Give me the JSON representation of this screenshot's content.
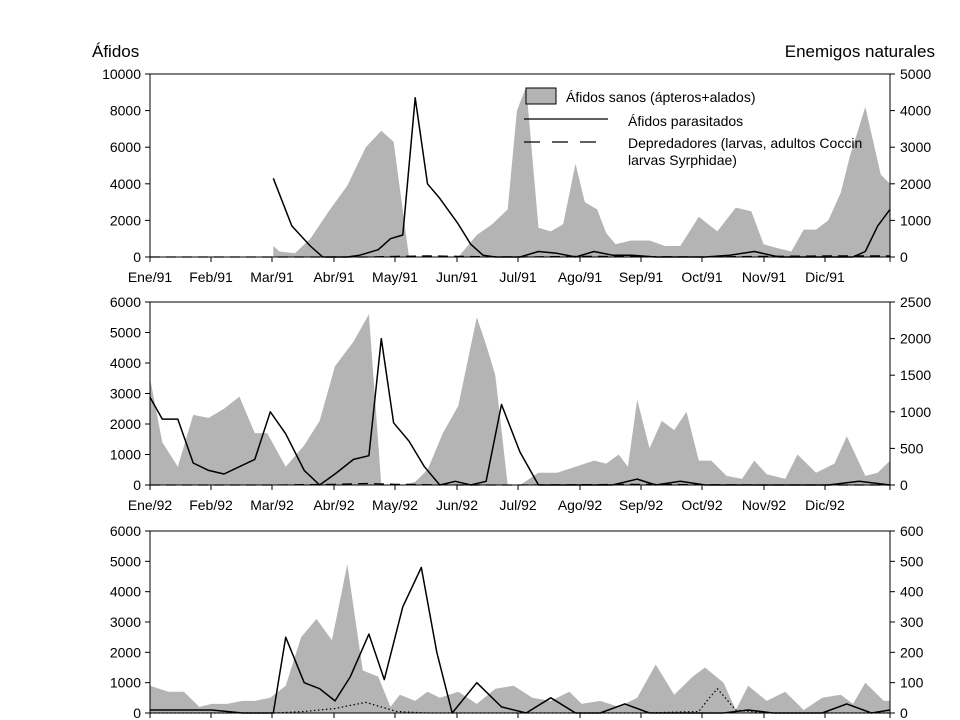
{
  "figure": {
    "left_axis_title": "Áfidos",
    "right_axis_title": "Enemigos naturales"
  },
  "legend": {
    "items": [
      {
        "label": "Áfidos sanos (ápteros+alados)",
        "style": "area",
        "color": "#b4b4b4"
      },
      {
        "label": "Áfidos parasitados",
        "style": "solid",
        "color": "#000000"
      },
      {
        "label": "Depredadores (larvas, adultos Coccin",
        "label_line2": "larvas Syrphidae)",
        "style": "dashed",
        "color": "#000000"
      }
    ]
  },
  "colors": {
    "area": "#b4b4b4",
    "line": "#000000"
  },
  "chart_data": [
    {
      "type": "area",
      "panel": "1991",
      "x_ticks": [
        "Ene/91",
        "Feb/91",
        "Mar/91",
        "Abr/91",
        "May/91",
        "Jun/91",
        "Jul/91",
        "Ago/91",
        "Sep/91",
        "Oct/91",
        "Nov/91",
        "Dic/91"
      ],
      "y_left": {
        "min": 0,
        "max": 10000,
        "ticks": [
          0,
          2000,
          4000,
          6000,
          8000,
          10000
        ]
      },
      "y_right": {
        "min": 0,
        "max": 5000,
        "ticks": [
          0,
          1000,
          2000,
          3000,
          4000,
          5000
        ]
      },
      "series": [
        {
          "name": "Áfidos sanos (ápteros+alados)",
          "axis": "left",
          "style": "area",
          "x": [
            2.0,
            2.1,
            2.35,
            2.6,
            2.9,
            3.2,
            3.5,
            3.75,
            3.95,
            4.2,
            4.45,
            4.65,
            4.8,
            5.0,
            5.3,
            5.55,
            5.8,
            5.95,
            6.1,
            6.3,
            6.5,
            6.7,
            6.9,
            7.05,
            7.25,
            7.4,
            7.55,
            7.8,
            8.1,
            8.35,
            8.6,
            8.9,
            9.2,
            9.5,
            9.75,
            9.95,
            10.15,
            10.4,
            10.6,
            10.8,
            11.0,
            11.2,
            11.35,
            11.6,
            11.85,
            12.0
          ],
          "y": [
            600,
            300,
            200,
            1000,
            2500,
            3900,
            6000,
            6900,
            6300,
            0,
            0,
            0,
            0,
            0,
            1200,
            1800,
            2600,
            8000,
            9300,
            1600,
            1400,
            1800,
            5100,
            3000,
            2600,
            1300,
            700,
            900,
            900,
            600,
            600,
            2200,
            1400,
            2700,
            2500,
            700,
            500,
            300,
            1500,
            1500,
            2000,
            3500,
            5500,
            8200,
            4500,
            4000
          ]
        },
        {
          "name": "Áfidos parasitados",
          "axis": "right",
          "style": "solid",
          "x": [
            2.0,
            2.3,
            2.6,
            2.8,
            3.0,
            3.2,
            3.4,
            3.7,
            3.9,
            4.1,
            4.3,
            4.5,
            4.7,
            5.0,
            5.2,
            5.4,
            5.6,
            5.8,
            6.0,
            6.3,
            6.6,
            6.9,
            7.2,
            7.5,
            7.8,
            8.2,
            8.6,
            9.0,
            9.4,
            9.8,
            10.2,
            10.6,
            11.0,
            11.4,
            11.6,
            11.8,
            12.0
          ],
          "y": [
            2150,
            850,
            300,
            0,
            0,
            0,
            50,
            200,
            500,
            600,
            4350,
            2000,
            1600,
            900,
            350,
            50,
            0,
            0,
            0,
            150,
            100,
            0,
            150,
            50,
            50,
            0,
            0,
            0,
            50,
            150,
            0,
            0,
            0,
            0,
            150,
            850,
            1300
          ]
        },
        {
          "name": "Depredadores (larvas, adultos Coccin larvas Syrphidae)",
          "axis": "right",
          "style": "dashed",
          "x": [
            0,
            3.5,
            4.0,
            4.5,
            5.0,
            6.0,
            7.0,
            8.0,
            9.0,
            10.0,
            11.0,
            12.0
          ],
          "y": [
            0,
            0,
            20,
            30,
            20,
            0,
            20,
            10,
            0,
            20,
            30,
            30
          ]
        }
      ]
    },
    {
      "type": "area",
      "panel": "1992a",
      "x_ticks": [
        "Ene/92",
        "Feb/92",
        "Mar/92",
        "Abr/92",
        "May/92",
        "Jun/92",
        "Jul/92",
        "Ago/92",
        "Sep/92",
        "Oct/92",
        "Nov/92",
        "Dic/92"
      ],
      "y_left": {
        "min": 0,
        "max": 6000,
        "ticks": [
          0,
          1000,
          2000,
          3000,
          4000,
          5000,
          6000
        ]
      },
      "y_right": {
        "min": 0,
        "max": 2500,
        "ticks": [
          0,
          500,
          1000,
          1500,
          2000,
          2500
        ]
      },
      "series": [
        {
          "name": "Áfidos sanos (ápteros+alados)",
          "axis": "left",
          "style": "area",
          "x": [
            0.0,
            0.2,
            0.45,
            0.7,
            0.95,
            1.2,
            1.45,
            1.7,
            1.9,
            2.2,
            2.5,
            2.75,
            3.0,
            3.3,
            3.55,
            3.75,
            3.9,
            4.1,
            4.3,
            4.5,
            4.75,
            5.0,
            5.3,
            5.45,
            5.6,
            5.8,
            6.0,
            6.3,
            6.6,
            6.9,
            7.2,
            7.4,
            7.6,
            7.75,
            7.9,
            8.1,
            8.3,
            8.5,
            8.7,
            8.9,
            9.1,
            9.35,
            9.6,
            9.8,
            10.0,
            10.3,
            10.5,
            10.8,
            11.1,
            11.3,
            11.6,
            11.8,
            12.0
          ],
          "y": [
            3500,
            1400,
            600,
            2300,
            2200,
            2500,
            2900,
            1700,
            1700,
            600,
            1300,
            2100,
            3900,
            4700,
            5600,
            0,
            0,
            0,
            100,
            500,
            1700,
            2600,
            5500,
            4600,
            3600,
            0,
            0,
            400,
            400,
            600,
            800,
            700,
            1000,
            600,
            2800,
            1200,
            2100,
            1800,
            2400,
            800,
            800,
            300,
            200,
            800,
            350,
            200,
            1000,
            400,
            700,
            1600,
            300,
            400,
            800
          ]
        },
        {
          "name": "Áfidos parasitados",
          "axis": "right",
          "style": "solid",
          "x": [
            0.0,
            0.2,
            0.45,
            0.7,
            0.95,
            1.2,
            1.45,
            1.7,
            1.95,
            2.2,
            2.5,
            2.75,
            3.0,
            3.3,
            3.55,
            3.75,
            3.95,
            4.2,
            4.45,
            4.7,
            4.95,
            5.2,
            5.45,
            5.7,
            6.0,
            6.3,
            6.6,
            7.0,
            7.5,
            7.9,
            8.2,
            8.6,
            9.0,
            9.5,
            10.0,
            10.5,
            11.0,
            11.5,
            12.0
          ],
          "y": [
            1200,
            900,
            900,
            300,
            200,
            150,
            250,
            350,
            1000,
            700,
            200,
            0,
            150,
            350,
            400,
            2000,
            850,
            600,
            250,
            0,
            50,
            0,
            50,
            1100,
            450,
            0,
            0,
            0,
            0,
            80,
            0,
            50,
            0,
            0,
            0,
            0,
            0,
            50,
            0
          ]
        },
        {
          "name": "Depredadores (larvas, adultos Coccin larvas Syrphidae)",
          "axis": "right",
          "style": "dashed",
          "x": [
            0,
            2.0,
            3.0,
            3.5,
            4.0,
            5.0,
            6.0,
            8.0,
            10.0,
            12.0
          ],
          "y": [
            0,
            0,
            10,
            20,
            10,
            0,
            0,
            10,
            0,
            0
          ]
        }
      ]
    },
    {
      "type": "area",
      "panel": "1992b",
      "x_ticks": [],
      "y_left": {
        "min": 0,
        "max": 6000,
        "ticks": [
          0,
          1000,
          2000,
          3000,
          4000,
          5000,
          6000
        ]
      },
      "y_right": {
        "min": 0,
        "max": 600,
        "ticks": [
          0,
          100,
          200,
          300,
          400,
          500,
          600
        ]
      },
      "series": [
        {
          "name": "Áfidos sanos (ápteros+alados)",
          "axis": "left",
          "style": "area",
          "x": [
            0.0,
            0.3,
            0.55,
            0.8,
            1.0,
            1.25,
            1.5,
            1.7,
            1.95,
            2.2,
            2.45,
            2.7,
            2.95,
            3.2,
            3.45,
            3.7,
            3.9,
            4.05,
            4.3,
            4.5,
            4.7,
            5.0,
            5.3,
            5.6,
            5.9,
            6.2,
            6.5,
            6.8,
            7.0,
            7.3,
            7.6,
            7.9,
            8.2,
            8.5,
            8.8,
            9.0,
            9.3,
            9.5,
            9.7,
            10.0,
            10.3,
            10.6,
            10.9,
            11.2,
            11.4,
            11.6,
            11.9,
            12.0
          ],
          "y": [
            900,
            700,
            700,
            200,
            300,
            300,
            400,
            400,
            500,
            900,
            2500,
            3100,
            2400,
            4900,
            1400,
            1200,
            200,
            600,
            400,
            700,
            500,
            700,
            300,
            800,
            900,
            500,
            400,
            700,
            300,
            400,
            200,
            500,
            1600,
            600,
            1200,
            1500,
            1000,
            100,
            900,
            400,
            700,
            100,
            500,
            600,
            300,
            1000,
            400,
            400
          ]
        },
        {
          "name": "Áfidos parasitados",
          "axis": "right",
          "style": "solid",
          "x": [
            0.0,
            0.5,
            1.0,
            1.5,
            2.0,
            2.2,
            2.5,
            2.75,
            3.0,
            3.25,
            3.55,
            3.8,
            4.1,
            4.4,
            4.65,
            4.9,
            5.3,
            5.7,
            6.1,
            6.5,
            6.9,
            7.3,
            7.7,
            8.1,
            8.5,
            8.9,
            9.3,
            9.7,
            10.1,
            10.5,
            10.9,
            11.3,
            11.7,
            12.0
          ],
          "y": [
            10,
            10,
            10,
            0,
            0,
            250,
            100,
            80,
            40,
            120,
            260,
            110,
            350,
            480,
            200,
            0,
            100,
            20,
            0,
            50,
            0,
            0,
            30,
            0,
            0,
            0,
            0,
            10,
            0,
            0,
            0,
            30,
            0,
            10
          ]
        },
        {
          "name": "Depredadores (larvas, adultos Coccin larvas Syrphidae)",
          "axis": "right",
          "style": "dotted",
          "x": [
            0,
            2.0,
            2.5,
            3.0,
            3.25,
            3.5,
            3.75,
            4.0,
            4.5,
            6.0,
            8.0,
            8.9,
            9.05,
            9.2,
            9.5,
            10.0,
            12.0
          ],
          "y": [
            0,
            0,
            5,
            15,
            25,
            35,
            20,
            5,
            0,
            0,
            0,
            5,
            45,
            80,
            10,
            0,
            0
          ]
        }
      ]
    }
  ]
}
